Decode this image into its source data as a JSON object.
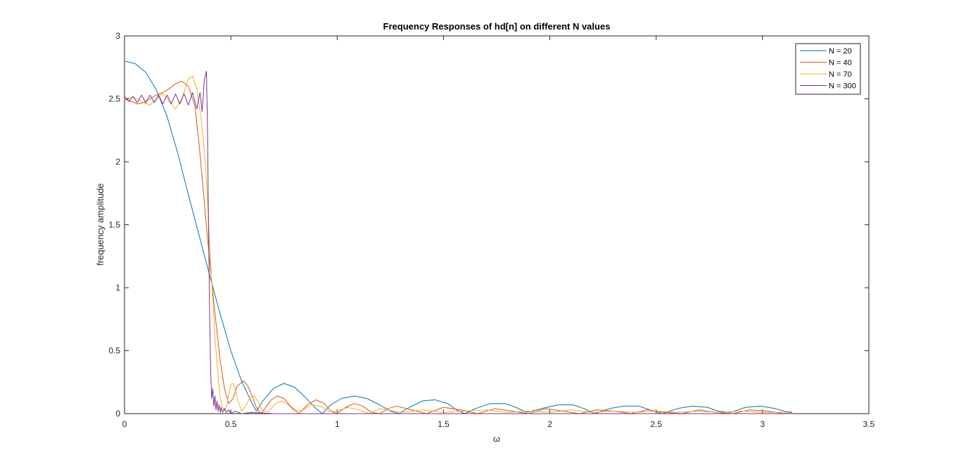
{
  "chart_data": {
    "type": "line",
    "title": "Frequency Responses of hd[n] on different N values",
    "xlabel": "ω",
    "ylabel": "frequency amplitude",
    "xlim": [
      0,
      3.5
    ],
    "ylim": [
      0,
      3
    ],
    "xticks": [
      0,
      0.5,
      1,
      1.5,
      2,
      2.5,
      3,
      3.5
    ],
    "xtick_labels": [
      "0",
      "0.5",
      "1",
      "1.5",
      "2",
      "2.5",
      "3",
      "3.5"
    ],
    "yticks": [
      0,
      0.5,
      1,
      1.5,
      2,
      2.5,
      3
    ],
    "ytick_labels": [
      "0",
      "0.5",
      "1",
      "1.5",
      "2",
      "2.5",
      "3"
    ],
    "grid": false,
    "box": true,
    "legend_position": "top-right",
    "series": [
      {
        "name": "N = 20",
        "color": "#0072BD",
        "x": [
          0,
          0.05,
          0.1,
          0.15,
          0.2,
          0.25,
          0.3,
          0.35,
          0.4,
          0.45,
          0.5,
          0.55,
          0.6,
          0.62,
          0.65,
          0.7,
          0.75,
          0.8,
          0.85,
          0.9,
          0.93,
          0.97,
          1.02,
          1.08,
          1.14,
          1.2,
          1.25,
          1.29,
          1.34,
          1.4,
          1.46,
          1.52,
          1.56,
          1.6,
          1.65,
          1.72,
          1.79,
          1.84,
          1.89,
          1.96,
          2.04,
          2.11,
          2.16,
          2.21,
          2.28,
          2.35,
          2.42,
          2.47,
          2.53,
          2.6,
          2.67,
          2.74,
          2.79,
          2.85,
          2.92,
          2.99,
          3.06,
          3.1,
          3.14
        ],
        "y": [
          2.8,
          2.78,
          2.71,
          2.57,
          2.36,
          2.07,
          1.74,
          1.42,
          1.1,
          0.79,
          0.5,
          0.26,
          0.08,
          0.02,
          0.1,
          0.2,
          0.24,
          0.21,
          0.13,
          0.04,
          0.0,
          0.07,
          0.12,
          0.14,
          0.12,
          0.07,
          0.02,
          0.0,
          0.05,
          0.1,
          0.11,
          0.08,
          0.03,
          0.0,
          0.04,
          0.08,
          0.08,
          0.05,
          0.01,
          0.04,
          0.07,
          0.07,
          0.04,
          0.0,
          0.04,
          0.06,
          0.06,
          0.03,
          0.0,
          0.04,
          0.06,
          0.05,
          0.02,
          0.01,
          0.05,
          0.06,
          0.04,
          0.02,
          0.01
        ]
      },
      {
        "name": "N = 40",
        "color": "#D95319",
        "x": [
          0,
          0.03,
          0.06,
          0.09,
          0.12,
          0.15,
          0.18,
          0.21,
          0.24,
          0.27,
          0.3,
          0.33,
          0.35,
          0.37,
          0.39,
          0.41,
          0.43,
          0.45,
          0.47,
          0.49,
          0.51,
          0.53,
          0.56,
          0.58,
          0.6,
          0.62,
          0.64,
          0.66,
          0.69,
          0.72,
          0.75,
          0.78,
          0.82,
          0.86,
          0.9,
          0.94,
          0.97,
          1.0,
          1.04,
          1.08,
          1.12,
          1.16,
          1.2,
          1.24,
          1.28,
          1.35,
          1.42,
          1.5,
          1.58,
          1.66,
          1.74,
          1.82,
          1.9,
          1.98,
          2.06,
          2.14,
          2.22,
          2.3,
          2.38,
          2.46,
          2.54,
          2.62,
          2.7,
          2.78,
          2.86,
          2.94,
          3.02,
          3.1,
          3.14
        ],
        "y": [
          2.5,
          2.48,
          2.46,
          2.47,
          2.5,
          2.53,
          2.55,
          2.58,
          2.62,
          2.64,
          2.6,
          2.45,
          2.15,
          1.78,
          1.4,
          1.05,
          0.72,
          0.42,
          0.2,
          0.08,
          0.12,
          0.22,
          0.26,
          0.22,
          0.14,
          0.05,
          0.0,
          0.04,
          0.11,
          0.14,
          0.12,
          0.06,
          0.0,
          0.07,
          0.11,
          0.08,
          0.02,
          0.0,
          0.05,
          0.08,
          0.06,
          0.01,
          0.0,
          0.04,
          0.06,
          0.03,
          0.0,
          0.05,
          0.03,
          0.0,
          0.04,
          0.02,
          0.0,
          0.04,
          0.02,
          0.0,
          0.03,
          0.02,
          0.0,
          0.03,
          0.01,
          0.0,
          0.03,
          0.01,
          0.0,
          0.03,
          0.02,
          0.0,
          0.01
        ]
      },
      {
        "name": "N = 70",
        "color": "#EDB120",
        "x": [
          0,
          0.03,
          0.06,
          0.09,
          0.12,
          0.15,
          0.18,
          0.21,
          0.24,
          0.27,
          0.3,
          0.32,
          0.34,
          0.36,
          0.38,
          0.39,
          0.4,
          0.41,
          0.42,
          0.43,
          0.44,
          0.45,
          0.46,
          0.47,
          0.48,
          0.49,
          0.5,
          0.51,
          0.52,
          0.53,
          0.55,
          0.57,
          0.59,
          0.61,
          0.63,
          0.65,
          0.68,
          0.71,
          0.74,
          0.77,
          0.8,
          0.84,
          0.88,
          0.92,
          0.96,
          1.0,
          1.05,
          1.1,
          1.15,
          1.2,
          1.3,
          1.4,
          1.5,
          1.6,
          1.7,
          1.8,
          1.9,
          2.0,
          2.1,
          2.2,
          2.3,
          2.4,
          2.5,
          2.6,
          2.7,
          2.8,
          2.9,
          3.0,
          3.1,
          3.14
        ],
        "y": [
          2.5,
          2.51,
          2.5,
          2.47,
          2.45,
          2.5,
          2.54,
          2.48,
          2.42,
          2.5,
          2.66,
          2.68,
          2.58,
          2.35,
          2.0,
          1.7,
          1.35,
          1.05,
          0.75,
          0.5,
          0.3,
          0.13,
          0.05,
          0.02,
          0.06,
          0.15,
          0.23,
          0.24,
          0.2,
          0.12,
          0.02,
          0.06,
          0.13,
          0.14,
          0.09,
          0.02,
          0.02,
          0.08,
          0.1,
          0.07,
          0.02,
          0.03,
          0.07,
          0.06,
          0.02,
          0.02,
          0.05,
          0.03,
          0.0,
          0.04,
          0.01,
          0.03,
          0.01,
          0.02,
          0.03,
          0.01,
          0.02,
          0.01,
          0.03,
          0.01,
          0.02,
          0.01,
          0.02,
          0.01,
          0.02,
          0.01,
          0.02,
          0.01,
          0.01,
          0.0
        ]
      },
      {
        "name": "N = 300",
        "color": "#7E2F8E",
        "x": [
          0,
          0.02,
          0.04,
          0.06,
          0.08,
          0.1,
          0.12,
          0.14,
          0.16,
          0.18,
          0.2,
          0.22,
          0.24,
          0.26,
          0.28,
          0.3,
          0.32,
          0.34,
          0.355,
          0.365,
          0.375,
          0.385,
          0.39,
          0.395,
          0.4,
          0.405,
          0.41,
          0.415,
          0.42,
          0.425,
          0.43,
          0.435,
          0.44,
          0.445,
          0.45,
          0.455,
          0.46,
          0.47,
          0.48,
          0.49,
          0.5,
          0.52,
          0.55,
          0.6,
          0.7,
          0.8,
          0.9,
          1.0,
          1.2,
          1.5,
          2.0,
          2.5,
          3.0,
          3.14
        ],
        "y": [
          2.52,
          2.48,
          2.52,
          2.47,
          2.53,
          2.47,
          2.53,
          2.47,
          2.53,
          2.46,
          2.53,
          2.46,
          2.54,
          2.46,
          2.54,
          2.45,
          2.55,
          2.42,
          2.55,
          2.4,
          2.65,
          2.72,
          2.3,
          1.5,
          0.8,
          0.35,
          0.12,
          0.2,
          0.06,
          0.14,
          0.03,
          0.1,
          0.02,
          0.07,
          0.01,
          0.05,
          0.01,
          0.04,
          0.01,
          0.03,
          0.0,
          0.02,
          0.0,
          0.01,
          0.0,
          0.0,
          0.0,
          0.0,
          0.0,
          0.0,
          0.0,
          0.0,
          0.0,
          0.0
        ]
      }
    ]
  }
}
